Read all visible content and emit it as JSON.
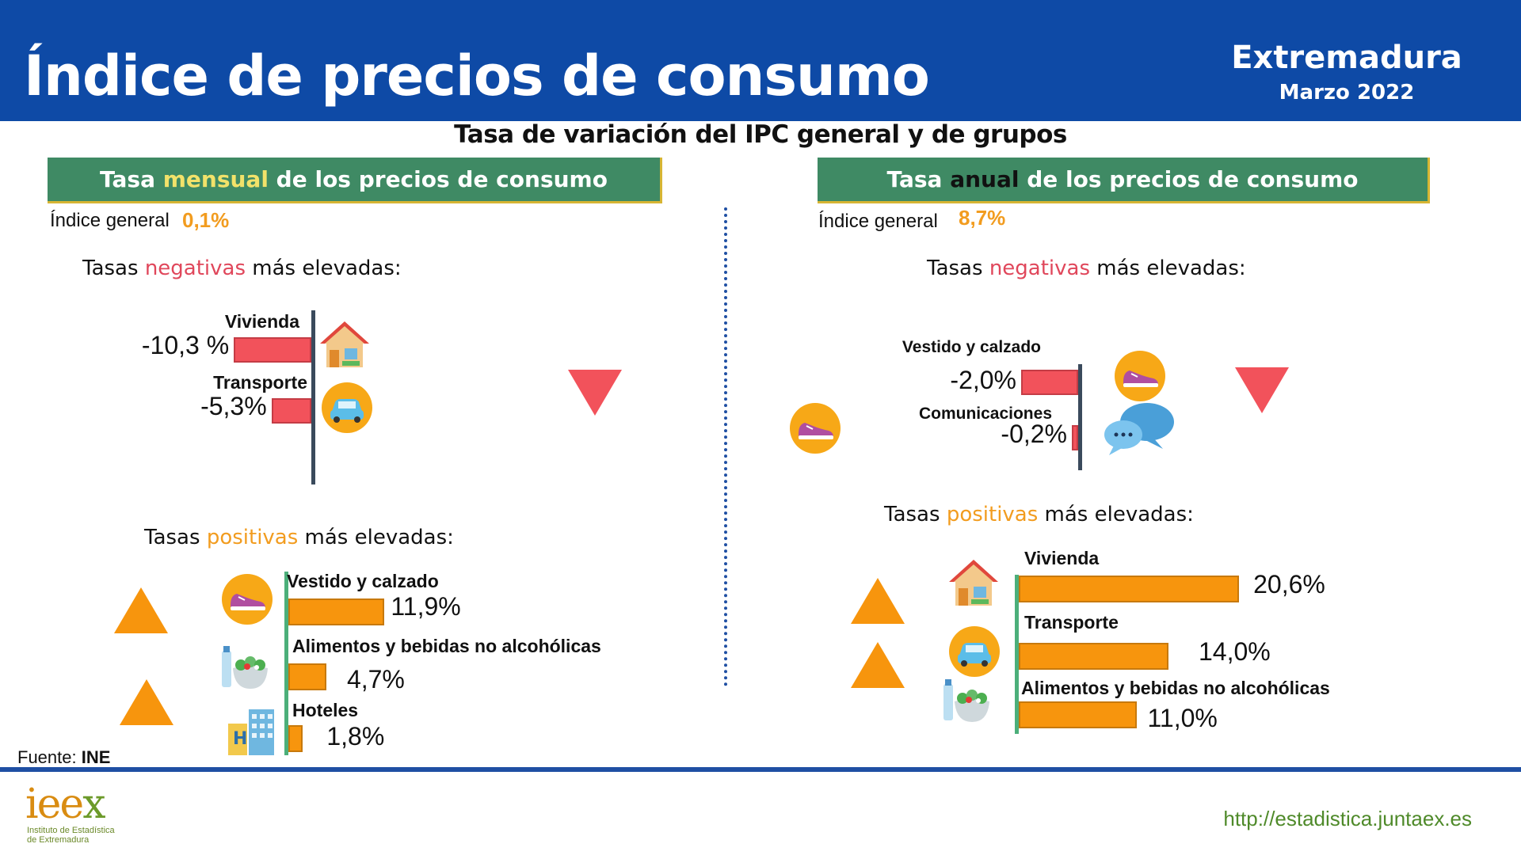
{
  "header": {
    "title": "Índice de precios de consumo",
    "region": "Extremadura",
    "period": "Marzo 2022"
  },
  "subtitle": "Tasa de variación del IPC general y de grupos",
  "monthly": {
    "banner_pre": "Tasa ",
    "banner_hl": "mensual",
    "banner_post": " de los precios de consumo",
    "general_label": "Índice general",
    "general_value": "0,1%",
    "neg_title_pre": "Tasas ",
    "neg_title_hl": "negativas",
    "neg_title_post": " más elevadas:",
    "pos_title_pre": "Tasas ",
    "pos_title_hl": "positivas",
    "pos_title_post": " más elevadas:"
  },
  "annual": {
    "banner_pre": "Tasa ",
    "banner_hl": "anual",
    "banner_post": " de los precios de consumo",
    "general_label": "Índice general",
    "general_value": "8,7%",
    "neg_title_pre": "Tasas ",
    "neg_title_hl": "negativas",
    "neg_title_post": " más elevadas:",
    "pos_title_pre": "Tasas ",
    "pos_title_hl": "positivas",
    "pos_title_post": " más elevadas:"
  },
  "chart_data": [
    {
      "type": "bar",
      "panel": "monthly-negative",
      "categories": [
        "Vivienda",
        "Transporte"
      ],
      "values": [
        -10.3,
        -5.3
      ],
      "labels": [
        "-10,3 %",
        "-5,3%"
      ],
      "icons": [
        "house-icon",
        "car-icon"
      ]
    },
    {
      "type": "bar",
      "panel": "monthly-positive",
      "categories": [
        "Vestido y calzado",
        "Alimentos y bebidas no alcohólicas",
        "Hoteles"
      ],
      "values": [
        11.9,
        4.7,
        1.8
      ],
      "labels": [
        "11,9%",
        "4,7%",
        "1,8%"
      ],
      "icons": [
        "shoe-icon",
        "food-icon",
        "hotel-icon"
      ]
    },
    {
      "type": "bar",
      "panel": "annual-negative",
      "categories": [
        "Vestido y calzado",
        "Comunicaciones"
      ],
      "values": [
        -2.0,
        -0.2
      ],
      "labels": [
        "-2,0%",
        "-0,2%"
      ],
      "icons": [
        "shoe-icon",
        "chat-bubbles-icon"
      ]
    },
    {
      "type": "bar",
      "panel": "annual-positive",
      "categories": [
        "Vivienda",
        "Transporte",
        "Alimentos y bebidas no alcohólicas"
      ],
      "values": [
        20.6,
        14.0,
        11.0
      ],
      "labels": [
        "20,6%",
        "14,0%",
        "11,0%"
      ],
      "icons": [
        "house-icon",
        "car-icon",
        "food-icon"
      ]
    }
  ],
  "colors": {
    "header_bg": "#0e4aa6",
    "banner_bg": "#3f8a64",
    "negative": "#f2525b",
    "positive": "#f7950d",
    "accent_value": "#f29c1f"
  },
  "footer": {
    "source_label": "Fuente: ",
    "source_value": "INE",
    "url": "http://estadistica.juntaex.es",
    "logo_main_a": "iee",
    "logo_main_b": "x",
    "logo_sub_1": "Instituto de Estadística",
    "logo_sub_2": "de Extremadura"
  }
}
